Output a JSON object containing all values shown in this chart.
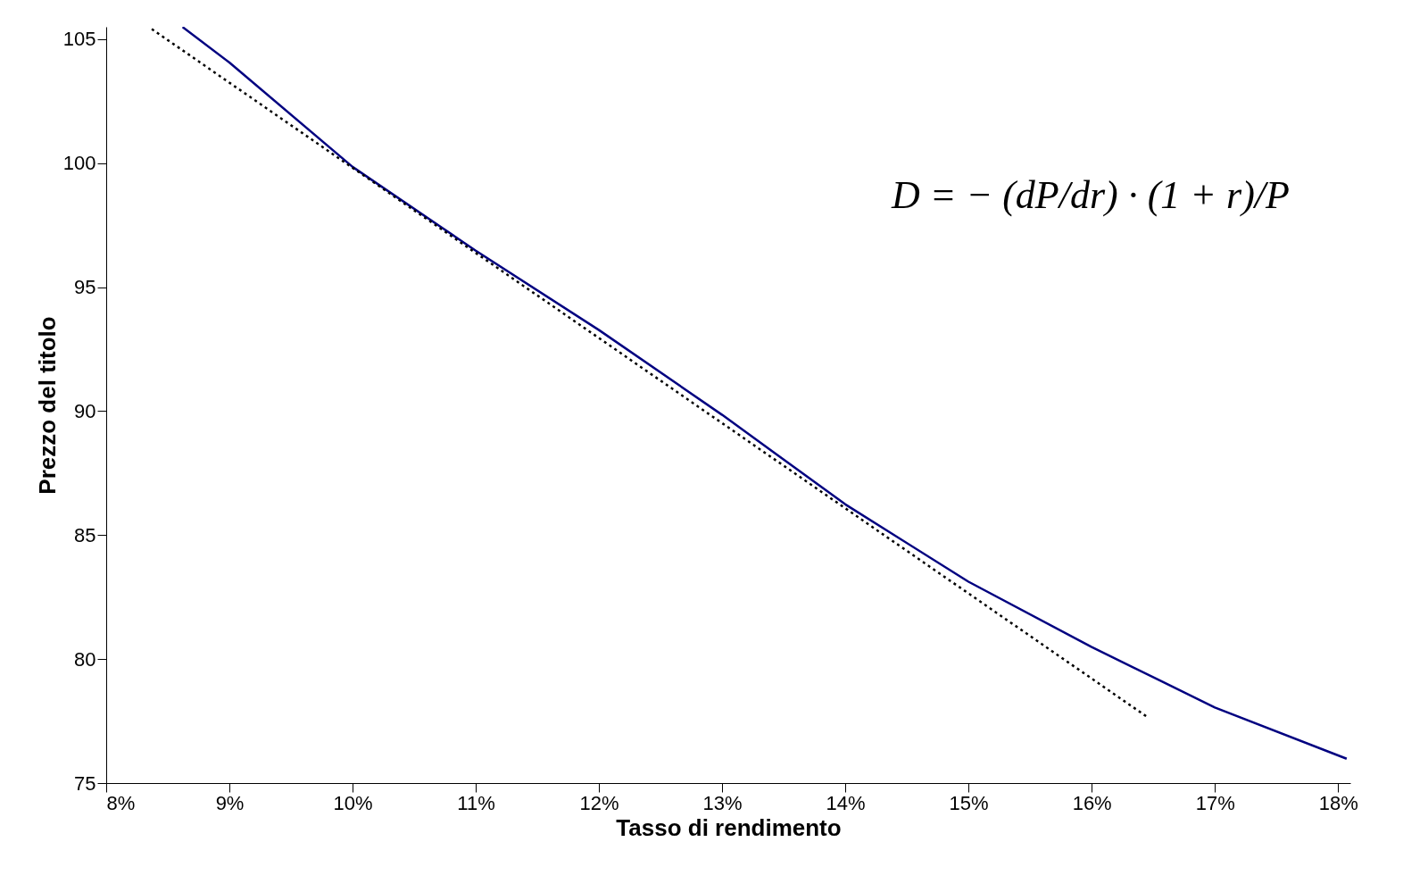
{
  "chart_data": {
    "type": "line",
    "xlabel": "Tasso di rendimento",
    "ylabel": "Prezzo del titolo",
    "annotations": [
      "D = − (dP/dr) · (1 + r)/P"
    ],
    "series": [
      {
        "color": "#000080",
        "line_style": "solid",
        "x": [
          8.62,
          9,
          10,
          11,
          12,
          13,
          14,
          15,
          16,
          17,
          18.07
        ],
        "values": [
          105.49,
          104.06,
          99.85,
          96.47,
          93.27,
          89.85,
          86.24,
          83.12,
          80.49,
          78.05,
          75.98
        ]
      },
      {
        "color": "#000000",
        "line_style": "dotted",
        "x": [
          8.37,
          16.45
        ],
        "values": [
          105.41,
          77.67
        ]
      }
    ],
    "xlim": [
      8,
      18.1
    ],
    "xticks": [
      {
        "value": 8,
        "label": "8%"
      },
      {
        "value": 9,
        "label": "9%"
      },
      {
        "value": 10,
        "label": "10%"
      },
      {
        "value": 11,
        "label": "11%"
      },
      {
        "value": 12,
        "label": "12%"
      },
      {
        "value": 13,
        "label": "13%"
      },
      {
        "value": 14,
        "label": "14%"
      },
      {
        "value": 15,
        "label": "15%"
      },
      {
        "value": 16,
        "label": "16%"
      },
      {
        "value": 17,
        "label": "17%"
      },
      {
        "value": 18,
        "label": "18%"
      }
    ],
    "ylim": [
      75,
      105.5
    ],
    "yticks": [
      75,
      80,
      85,
      90,
      95,
      100,
      105
    ],
    "grid": false,
    "legend": false
  }
}
